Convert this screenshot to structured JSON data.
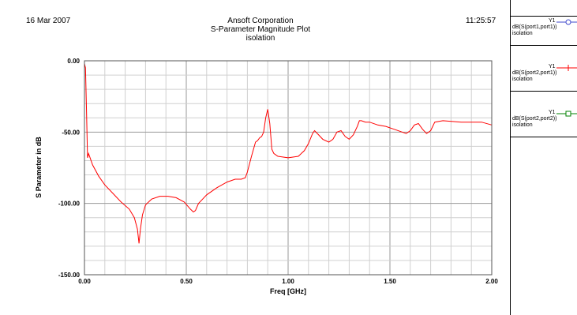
{
  "header": {
    "date": "16 Mar 2007",
    "time": "11:25:57",
    "company": "Ansoft Corporation",
    "plot_title": "S-Parameter Magnitude Plot",
    "setup_name": "isolation"
  },
  "legend": [
    {
      "name": "Y1",
      "trace": "dB(S(port1,port1))",
      "setup": "isolation",
      "color": "#3f48cc",
      "marker": "circle"
    },
    {
      "name": "Y1",
      "trace": "dB(S(port2,port1))",
      "setup": "isolation",
      "color": "#ff0000",
      "marker": "plus"
    },
    {
      "name": "Y1",
      "trace": "dB(S(port2,port2))",
      "setup": "isolation",
      "color": "#008000",
      "marker": "square"
    }
  ],
  "chart_data": {
    "type": "line",
    "title": "S-Parameter Magnitude Plot",
    "xlabel": "Freq [GHz]",
    "ylabel": "S Parameter in dB",
    "xlim": [
      0,
      2.0
    ],
    "ylim": [
      -150,
      0
    ],
    "xticks": [
      "0.00",
      "0.50",
      "1.00",
      "1.50",
      "2.00"
    ],
    "yticks": [
      "0.00",
      "-50.00",
      "-100.00",
      "-150.00"
    ],
    "grid": true,
    "series": [
      {
        "name": "dB(S(port1,port1))",
        "color": "#3f48cc",
        "x": [
          0.0,
          2.0
        ],
        "y": [
          0.0,
          0.0
        ]
      },
      {
        "name": "dB(S(port2,port1))",
        "color": "#ff0000",
        "x": [
          0.0,
          0.005,
          0.01,
          0.015,
          0.02,
          0.04,
          0.07,
          0.1,
          0.14,
          0.18,
          0.22,
          0.245,
          0.26,
          0.268,
          0.275,
          0.285,
          0.3,
          0.33,
          0.37,
          0.41,
          0.45,
          0.49,
          0.52,
          0.535,
          0.545,
          0.56,
          0.6,
          0.65,
          0.7,
          0.74,
          0.77,
          0.79,
          0.8,
          0.82,
          0.84,
          0.85,
          0.86,
          0.87,
          0.88,
          0.89,
          0.9,
          0.91,
          0.92,
          0.93,
          0.95,
          1.0,
          1.05,
          1.08,
          1.1,
          1.12,
          1.13,
          1.15,
          1.17,
          1.2,
          1.22,
          1.24,
          1.26,
          1.28,
          1.3,
          1.32,
          1.34,
          1.35,
          1.36,
          1.38,
          1.4,
          1.44,
          1.48,
          1.52,
          1.56,
          1.58,
          1.6,
          1.62,
          1.64,
          1.66,
          1.68,
          1.7,
          1.72,
          1.76,
          1.85,
          1.95,
          2.0
        ],
        "y": [
          -2,
          -5,
          -35,
          -68,
          -65,
          -73,
          -81,
          -87,
          -93,
          -99,
          -104,
          -110,
          -118,
          -128,
          -118,
          -108,
          -101,
          -97,
          -95,
          -95,
          -96,
          -99,
          -104,
          -106,
          -105,
          -100,
          -94,
          -89,
          -85,
          -83,
          -83,
          -82,
          -78,
          -67,
          -57,
          -56,
          -54,
          -53,
          -50,
          -40,
          -34,
          -44,
          -62,
          -65,
          -67,
          -68,
          -67,
          -63,
          -58,
          -51,
          -49,
          -52,
          -55,
          -57,
          -55,
          -50,
          -49,
          -53,
          -55,
          -52,
          -46,
          -42,
          -42,
          -43,
          -43,
          -45,
          -46,
          -48,
          -50,
          -51,
          -49,
          -45,
          -44,
          -48,
          -51,
          -49,
          -43,
          -42,
          -43,
          -43,
          -45
        ]
      },
      {
        "name": "dB(S(port2,port2))",
        "color": "#008000",
        "x": [
          0.0,
          2.0
        ],
        "y": [
          0.0,
          0.0
        ]
      }
    ]
  }
}
